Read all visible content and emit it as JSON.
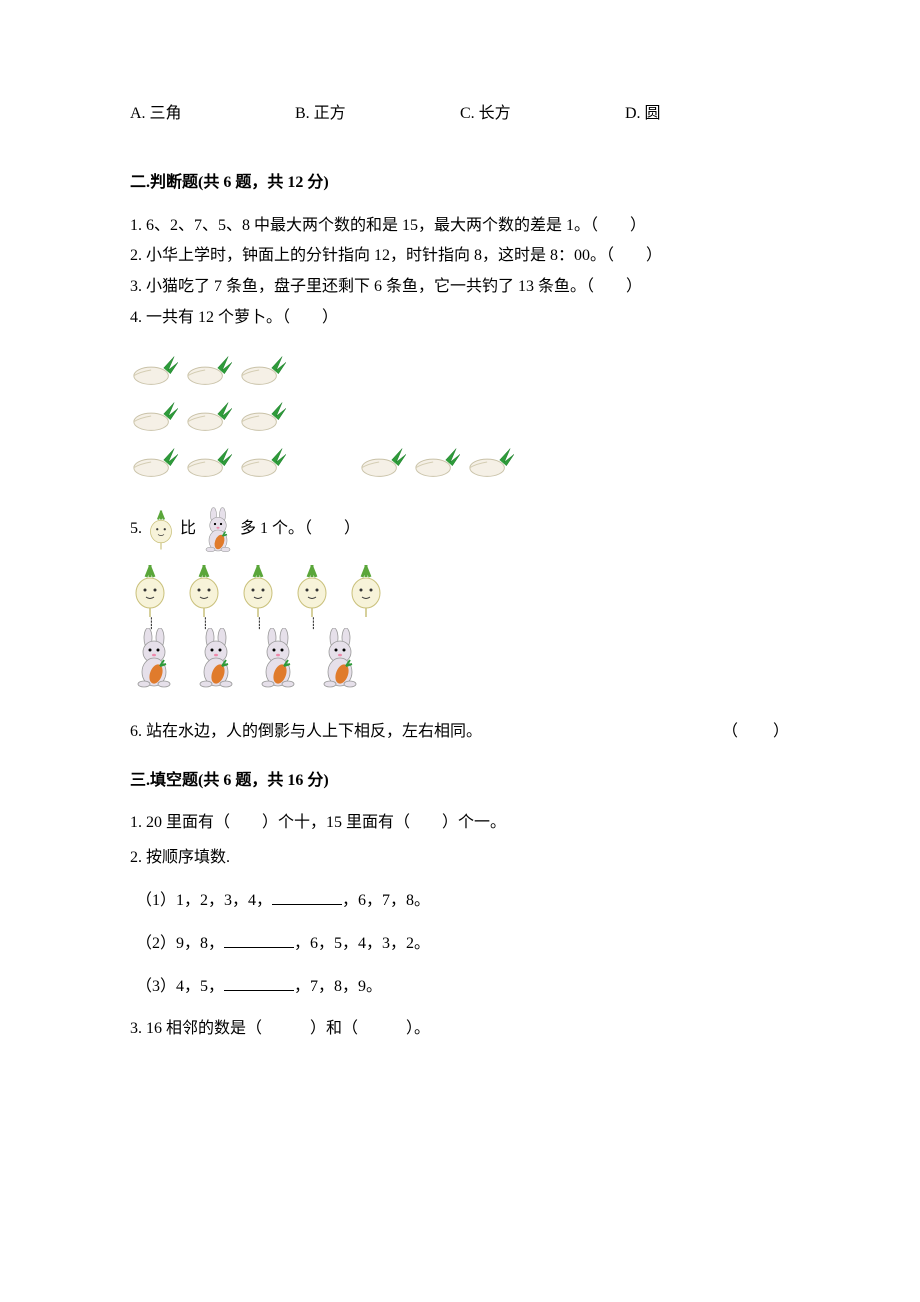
{
  "mc": {
    "a": "A. 三角",
    "b": "B. 正方",
    "c": "C. 长方",
    "d": "D. 圆"
  },
  "section2": {
    "title": "二.判断题(共 6 题，共 12 分)",
    "q1": "1. 6、2、7、5、8 中最大两个数的和是 15，最大两个数的差是 1。（　　）",
    "q2": "2. 小华上学时，钟面上的分针指向 12，时针指向 8，这时是 8：00。（　　）",
    "q3": "3. 小猫吃了 7 条鱼，盘子里还剩下 6 条鱼，它一共钓了 13 条鱼。（　　）",
    "q4": "4. 一共有 12 个萝卜。（　　）",
    "q5_prefix": "5.",
    "q5_mid": "比",
    "q5_suffix": "多 1 个。（　　）",
    "q6_text": "6. 站在水边，人的倒影与人上下相反，左右相同。",
    "q6_paren": "（　　）"
  },
  "section3": {
    "title": "三.填空题(共 6 题，共 16 分)",
    "q1": "1. 20 里面有（　　）个十，15 里面有（　　）个一。",
    "q2": "2. 按顺序填数.",
    "q2_1a": "（1）1，2，3，4，",
    "q2_1b": "，6，7，8。",
    "q2_2a": "（2）9，8，",
    "q2_2b": "，6，5，4，3，2。",
    "q2_3a": "（3）4，5，",
    "q2_3b": "，7，8，9。",
    "q3": "3. 16 相邻的数是（　　　）和（　　　）。"
  },
  "carrots": {
    "rows": [
      [
        3
      ],
      [
        3
      ],
      [
        3,
        3
      ]
    ]
  },
  "turnips_count": 5,
  "rabbits_count": 4,
  "colors": {
    "carrot_body": "#f5f0e6",
    "carrot_leaf": "#2e9b3a",
    "turnip_body": "#f7f3d9",
    "turnip_leaf": "#5aa63a",
    "rabbit_body": "#e6e0ea",
    "rabbit_carrot": "#e07b2c"
  }
}
